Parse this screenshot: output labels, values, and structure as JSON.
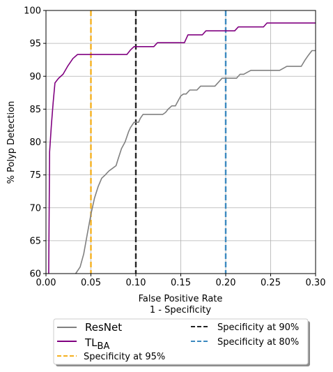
{
  "chart_data": {
    "type": "line",
    "xlabel_line1": "False Positive Rate",
    "xlabel_line2": "1 - Specificity",
    "ylabel": "% Polyp Detection",
    "xlim": [
      0.0,
      0.3
    ],
    "ylim": [
      60,
      100
    ],
    "xticks": [
      0.0,
      0.05,
      0.1,
      0.15,
      0.2,
      0.25,
      0.3
    ],
    "xtick_labels": [
      "0.00",
      "0.05",
      "0.10",
      "0.15",
      "0.20",
      "0.25",
      "0.30"
    ],
    "yticks": [
      60,
      65,
      70,
      75,
      80,
      85,
      90,
      95,
      100
    ],
    "ytick_labels": [
      "60",
      "65",
      "70",
      "75",
      "80",
      "85",
      "90",
      "95",
      "100"
    ],
    "grid": true,
    "legend_position": "below plot, two columns",
    "series": [
      {
        "name": "ResNet",
        "color": "#808080",
        "style": "solid",
        "x": [
          0.033,
          0.038,
          0.042,
          0.046,
          0.05,
          0.054,
          0.058,
          0.062,
          0.066,
          0.07,
          0.074,
          0.078,
          0.08,
          0.084,
          0.088,
          0.092,
          0.094,
          0.098,
          0.1,
          0.103,
          0.105,
          0.108,
          0.11,
          0.113,
          0.116,
          0.12,
          0.125,
          0.13,
          0.133,
          0.136,
          0.14,
          0.144,
          0.148,
          0.15,
          0.153,
          0.156,
          0.16,
          0.164,
          0.168,
          0.172,
          0.176,
          0.18,
          0.184,
          0.188,
          0.192,
          0.196,
          0.2,
          0.204,
          0.208,
          0.212,
          0.216,
          0.22,
          0.224,
          0.228,
          0.232,
          0.236,
          0.24,
          0.244,
          0.248,
          0.252,
          0.256,
          0.26,
          0.264,
          0.268,
          0.272,
          0.276,
          0.28,
          0.284,
          0.288,
          0.292,
          0.296,
          0.3
        ],
        "y": [
          60.0,
          61.0,
          63.0,
          66.0,
          69.0,
          71.5,
          73.2,
          74.5,
          75.0,
          75.6,
          76.0,
          76.4,
          77.3,
          79.0,
          80.0,
          81.6,
          82.2,
          83.0,
          83.0,
          83.0,
          83.6,
          84.2,
          84.2,
          84.2,
          84.2,
          84.2,
          84.2,
          84.2,
          84.5,
          85.0,
          85.5,
          85.5,
          86.5,
          87.0,
          87.3,
          87.3,
          87.9,
          87.9,
          87.9,
          88.5,
          88.5,
          88.5,
          88.5,
          88.5,
          89.1,
          89.7,
          89.7,
          89.7,
          89.7,
          89.7,
          90.3,
          90.3,
          90.6,
          90.9,
          90.9,
          90.9,
          90.9,
          90.9,
          90.9,
          90.9,
          90.9,
          90.9,
          91.2,
          91.5,
          91.5,
          91.5,
          91.5,
          91.5,
          92.4,
          93.2,
          93.9,
          93.9
        ]
      },
      {
        "name": "TL",
        "name_subscript": "BA",
        "color": "#800080",
        "style": "solid",
        "x": [
          0.003,
          0.004,
          0.006,
          0.008,
          0.01,
          0.014,
          0.019,
          0.024,
          0.03,
          0.035,
          0.04,
          0.045,
          0.05,
          0.055,
          0.06,
          0.065,
          0.07,
          0.075,
          0.08,
          0.085,
          0.09,
          0.094,
          0.098,
          0.1,
          0.105,
          0.11,
          0.115,
          0.12,
          0.124,
          0.128,
          0.132,
          0.136,
          0.14,
          0.145,
          0.15,
          0.154,
          0.158,
          0.162,
          0.166,
          0.17,
          0.174,
          0.178,
          0.182,
          0.186,
          0.19,
          0.194,
          0.198,
          0.202,
          0.206,
          0.21,
          0.214,
          0.218,
          0.222,
          0.226,
          0.23,
          0.234,
          0.238,
          0.242,
          0.246,
          0.25,
          0.26,
          0.27,
          0.28,
          0.29,
          0.3
        ],
        "y": [
          60.0,
          78.5,
          82.5,
          86.0,
          89.0,
          89.7,
          90.3,
          91.5,
          92.7,
          93.3,
          93.3,
          93.3,
          93.3,
          93.3,
          93.3,
          93.3,
          93.3,
          93.3,
          93.3,
          93.3,
          93.3,
          94.0,
          94.5,
          94.5,
          94.5,
          94.5,
          94.5,
          94.5,
          95.1,
          95.1,
          95.1,
          95.1,
          95.1,
          95.1,
          95.1,
          95.1,
          96.3,
          96.3,
          96.3,
          96.3,
          96.3,
          96.9,
          96.9,
          96.9,
          96.9,
          96.9,
          96.9,
          96.9,
          96.9,
          96.9,
          97.5,
          97.5,
          97.5,
          97.5,
          97.5,
          97.5,
          97.5,
          97.5,
          98.1,
          98.1,
          98.1,
          98.1,
          98.1,
          98.1,
          98.1
        ]
      }
    ],
    "reference_lines": [
      {
        "name": "Specificity at 95%",
        "x": 0.05,
        "color": "#f5b01f",
        "style": "dashed"
      },
      {
        "name": "Specificity at 90%",
        "x": 0.1,
        "color": "#222222",
        "style": "dashed"
      },
      {
        "name": "Specificity at 80%",
        "x": 0.2,
        "color": "#3b89bf",
        "style": "dashed"
      }
    ],
    "colors": {
      "grid": "#b0b0b0",
      "axis": "#000000"
    }
  }
}
